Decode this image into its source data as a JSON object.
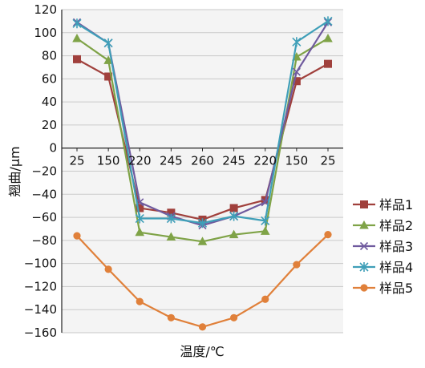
{
  "chart_data": {
    "type": "line",
    "title": "",
    "xlabel": "温度/℃",
    "ylabel": "翘曲/μm",
    "categories": [
      "25",
      "150",
      "220",
      "245",
      "260",
      "245",
      "220",
      "150",
      "25"
    ],
    "ylim": [
      -160,
      120
    ],
    "ytick_step": 20,
    "yticks": [
      "120",
      "100",
      "80",
      "60",
      "40",
      "20",
      "0",
      "−20",
      "−40",
      "−60",
      "−80",
      "−100",
      "−120",
      "−140",
      "−160"
    ],
    "grid": true,
    "legend_position": "right",
    "series": [
      {
        "name": "样品1",
        "color": "#a0403c",
        "marker": "square",
        "values": [
          77,
          62,
          -52,
          -56,
          -62,
          -52,
          -45,
          58,
          73
        ]
      },
      {
        "name": "样品2",
        "color": "#7fa347",
        "marker": "triangle",
        "values": [
          95,
          76,
          -73,
          -77,
          -81,
          -75,
          -72,
          79,
          95
        ]
      },
      {
        "name": "样品3",
        "color": "#6f5a9e",
        "marker": "x",
        "values": [
          109,
          91,
          -47,
          -59,
          -67,
          -59,
          -47,
          66,
          109
        ]
      },
      {
        "name": "样品4",
        "color": "#3f9fb8",
        "marker": "star",
        "values": [
          108,
          91,
          -61,
          -61,
          -65,
          -59,
          -63,
          92,
          110
        ]
      },
      {
        "name": "样品5",
        "color": "#e0803a",
        "marker": "circle",
        "values": [
          -76,
          -105,
          -133,
          -147,
          -155,
          -147,
          -131,
          -101,
          -75
        ]
      }
    ]
  }
}
